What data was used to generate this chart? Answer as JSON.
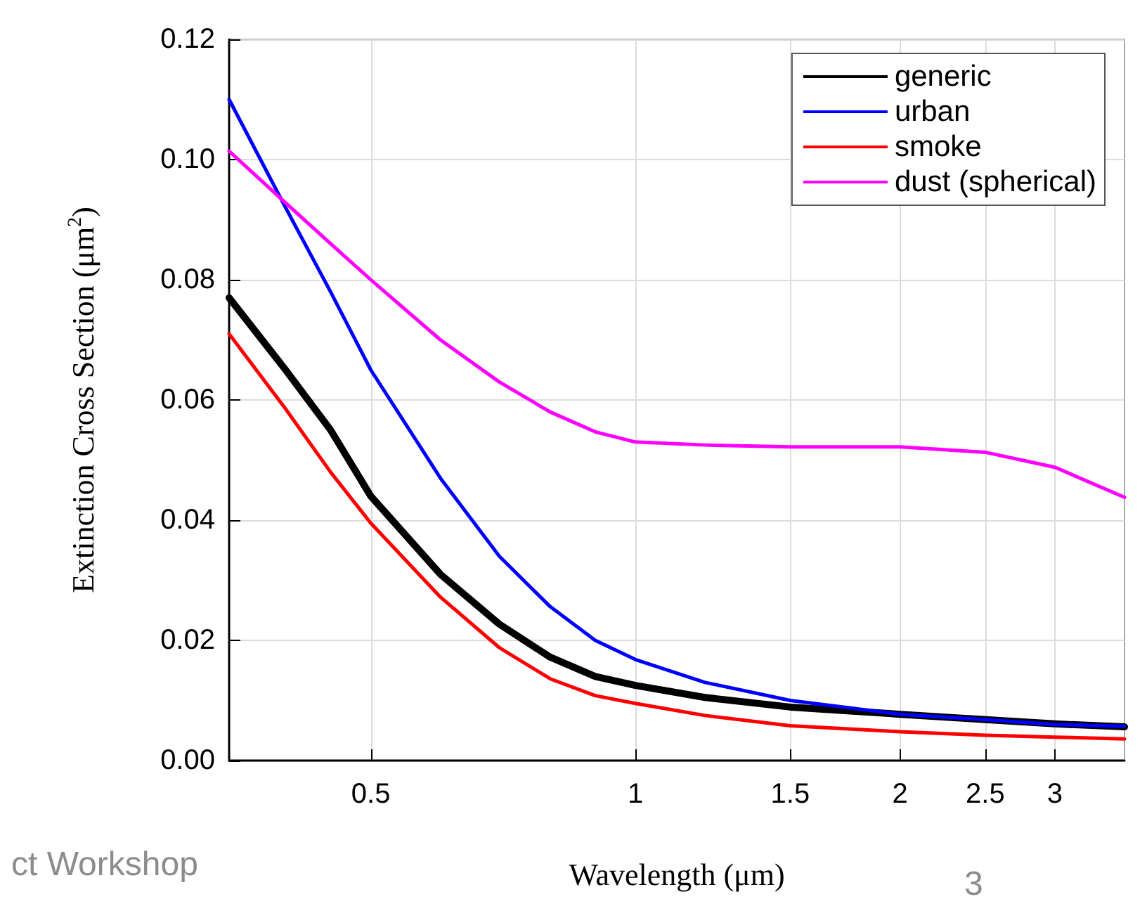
{
  "chart_data": {
    "type": "line",
    "xlabel": "Wavelength (μm)",
    "ylabel": "Extinction Cross Section (μm$^{2}$)",
    "x": [
      0.345,
      0.4,
      0.45,
      0.5,
      0.6,
      0.7,
      0.8,
      0.9,
      1.0,
      1.2,
      1.5,
      2,
      2.5,
      3,
      3.6
    ],
    "series": [
      {
        "name": "generic",
        "color": "#000000",
        "values": [
          0.077,
          0.065,
          0.055,
          0.044,
          0.031,
          0.0227,
          0.0172,
          0.014,
          0.0125,
          0.0105,
          0.0089,
          0.0077,
          0.0068,
          0.0061,
          0.0056
        ]
      },
      {
        "name": "urban",
        "color": "#0000ff",
        "values": [
          0.11,
          0.092,
          0.078,
          0.065,
          0.047,
          0.034,
          0.0256,
          0.02,
          0.0168,
          0.013,
          0.01,
          0.0077,
          0.0068,
          0.006,
          0.0057
        ]
      },
      {
        "name": "smoke",
        "color": "#ff0000",
        "values": [
          0.071,
          0.0585,
          0.048,
          0.0395,
          0.0272,
          0.0188,
          0.0136,
          0.0108,
          0.0095,
          0.0075,
          0.0058,
          0.0048,
          0.0042,
          0.0039,
          0.0036
        ]
      },
      {
        "name": "dust (spherical)",
        "color": "#ff00ff",
        "values": [
          0.1014,
          0.0928,
          0.086,
          0.08,
          0.07,
          0.063,
          0.058,
          0.0547,
          0.053,
          0.0525,
          0.0522,
          0.0522,
          0.0513,
          0.0488,
          0.0438
        ]
      }
    ],
    "log": "x",
    "xlim": [
      0.345,
      3.6
    ],
    "xticks": [
      0.5,
      1,
      1.5,
      2,
      2.5,
      3
    ],
    "ylim": [
      0,
      0.12
    ],
    "yticks": [
      {
        "value": 0,
        "label": "0.00"
      },
      {
        "value": 0.02,
        "label": "0.02"
      },
      {
        "value": 0.04,
        "label": "0.04"
      },
      {
        "value": 0.06,
        "label": "0.06"
      },
      {
        "value": 0.08,
        "label": "0.08"
      },
      {
        "value": 0.1,
        "label": "0.10"
      },
      {
        "value": 0.12,
        "label": "0.12"
      }
    ],
    "grid": true,
    "legend": "top right",
    "marker": "none",
    "line_style": "solid",
    "annotations": [
      "ct Workshop",
      "3"
    ]
  }
}
